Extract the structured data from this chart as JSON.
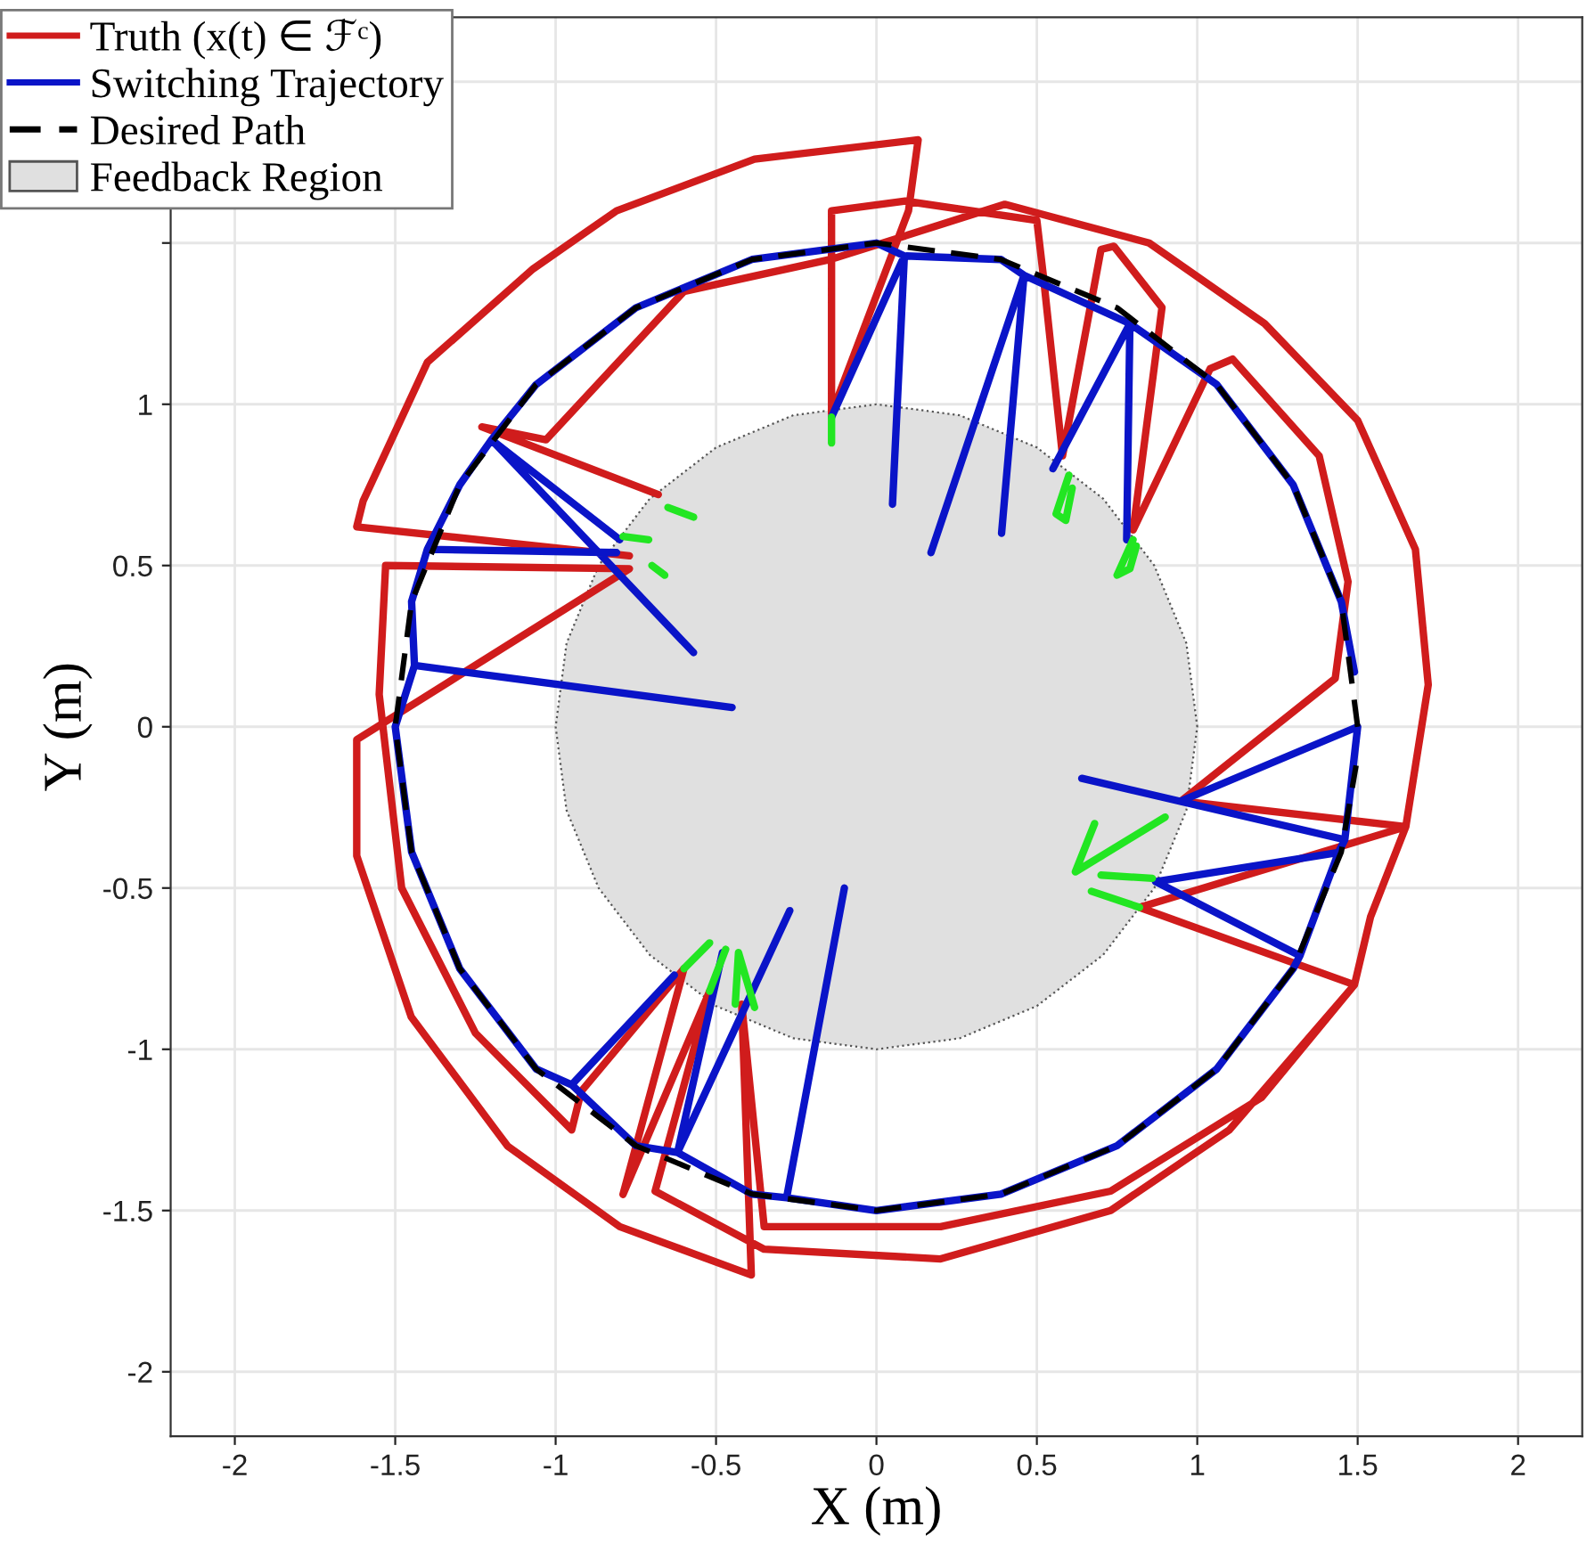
{
  "chart_data": {
    "type": "line",
    "xlabel": "X (m)",
    "ylabel": "Y (m)",
    "xlim": [
      -2.2,
      2.2
    ],
    "ylim": [
      -2.2,
      2.2
    ],
    "xticks": [
      -2,
      -1.5,
      -1,
      -0.5,
      0,
      0.5,
      1,
      1.5,
      2
    ],
    "yticks": [
      -2,
      -1.5,
      -1,
      -0.5,
      0,
      0.5,
      1,
      {
        "value": 1.5,
        "label": null
      },
      {
        "value": 2,
        "label": null
      }
    ],
    "grid": true,
    "legend": "top left",
    "series": [
      {
        "name": "Truth (x(t) ∈ ℱᶜ)",
        "color": "#d01c1c",
        "line_style": "solid",
        "x": [
          -0.77,
          -1.62,
          -1.6,
          -1.4,
          -1.07,
          -0.81,
          -0.38,
          0.13,
          0.1,
          -0.14,
          -0.14,
          0.09,
          0.5,
          0.52,
          0.58,
          0.7,
          0.74,
          0.89,
          0.8,
          1.04,
          1.11,
          1.38,
          1.47,
          1.43,
          0.95,
          1.65,
          1.54,
          1.49,
          1.2,
          0.73,
          0.2,
          -0.35,
          -0.42,
          -0.39,
          -0.8,
          -1.15,
          -1.45,
          -1.62,
          -1.62,
          -0.77,
          -1.53,
          -1.55,
          -1.48,
          -1.25,
          -0.95,
          -0.92,
          -0.6,
          -0.79,
          -0.52,
          -0.69,
          -0.35,
          0.2,
          0.73,
          1.1,
          1.49,
          0.82,
          1.65,
          1.72,
          1.68,
          1.5,
          1.21,
          0.85,
          0.4,
          -0.14,
          -0.6,
          -1.03,
          -1.23,
          -0.68
        ],
        "values": [
          0.53,
          0.62,
          0.7,
          1.13,
          1.42,
          1.6,
          1.76,
          1.82,
          1.6,
          0.97,
          1.6,
          1.63,
          1.57,
          1.4,
          0.84,
          1.48,
          1.49,
          1.3,
          0.61,
          1.11,
          1.14,
          0.84,
          0.45,
          0.15,
          -0.23,
          -0.31,
          -0.59,
          -0.8,
          -1.15,
          -1.44,
          -1.55,
          -1.55,
          -0.86,
          -1.7,
          -1.55,
          -1.3,
          -0.9,
          -0.4,
          -0.04,
          0.49,
          0.5,
          0.1,
          -0.5,
          -0.95,
          -1.25,
          -1.13,
          -0.75,
          -1.45,
          -0.82,
          -1.44,
          -1.62,
          -1.65,
          -1.5,
          -1.25,
          -0.8,
          -0.56,
          -0.31,
          0.13,
          0.55,
          0.95,
          1.25,
          1.5,
          1.62,
          1.45,
          1.35,
          0.89,
          0.93,
          0.72
        ]
      },
      {
        "name": "Switching Trajectory",
        "color": "#0a14c8",
        "line_style": "solid",
        "x": [
          1.49,
          1.449,
          1.299,
          1.061,
          0.79,
          0.55,
          0.79,
          0.78,
          0.79,
          0.46,
          0.39,
          0.46,
          0.17,
          0.46,
          0.388,
          0.087,
          0.05,
          0.087,
          -0.14,
          0.087,
          0,
          -0.388,
          -0.75,
          -1.061,
          -1.2,
          -0.8,
          -1.2,
          -0.57,
          -1.2,
          -1.299,
          -1.4,
          -0.81,
          -1.4,
          -1.449,
          -1.44,
          -0.45,
          -1.44,
          -1.5,
          -1.449,
          -1.299,
          -1.061,
          -0.95,
          -0.63,
          -0.95,
          -0.75,
          -0.62,
          -0.48,
          -0.62,
          -0.27,
          -0.62,
          -0.388,
          -0.28,
          -0.1,
          -0.28,
          0,
          0.388,
          0.75,
          1.061,
          1.299,
          1.32,
          0.87,
          1.32,
          1.44,
          0.87,
          1.44,
          1.46,
          0.64,
          1.46,
          1.5,
          0.95,
          1.5
        ],
        "values": [
          0.17,
          0.388,
          0.75,
          1.061,
          1.25,
          0.8,
          1.25,
          0.58,
          1.25,
          1.4,
          0.6,
          1.4,
          0.54,
          1.4,
          1.449,
          1.46,
          0.69,
          1.46,
          0.96,
          1.46,
          1.5,
          1.449,
          1.299,
          1.061,
          0.89,
          0.58,
          0.89,
          0.23,
          0.89,
          0.75,
          0.55,
          0.54,
          0.55,
          0.388,
          0.19,
          0.06,
          0.19,
          0,
          -0.388,
          -0.75,
          -1.061,
          -1.11,
          -0.77,
          -1.11,
          -1.299,
          -1.32,
          -0.7,
          -1.32,
          -0.57,
          -1.32,
          -1.449,
          -1.46,
          -0.5,
          -1.46,
          -1.5,
          -1.449,
          -1.299,
          -1.061,
          -0.75,
          -0.71,
          -0.48,
          -0.71,
          -0.39,
          -0.48,
          -0.39,
          -0.35,
          -0.16,
          -0.35,
          0,
          -0.23,
          0
        ]
      },
      {
        "name": "Desired Path",
        "color": "#000000",
        "line_style": "dashed",
        "x": [
          1.5,
          1.449,
          1.299,
          1.061,
          0.75,
          0.388,
          0,
          -0.388,
          -0.75,
          -1.061,
          -1.299,
          -1.449,
          -1.5,
          -1.449,
          -1.299,
          -1.061,
          -0.75,
          -0.388,
          0,
          0.388,
          0.75,
          1.061,
          1.299,
          1.449,
          1.495
        ],
        "values": [
          0,
          0.388,
          0.75,
          1.061,
          1.299,
          1.449,
          1.5,
          1.449,
          1.299,
          1.061,
          0.75,
          0.388,
          0,
          -0.388,
          -0.75,
          -1.061,
          -1.299,
          -1.449,
          -1.5,
          -1.449,
          -1.299,
          -1.061,
          -0.75,
          -0.388,
          -0.12
        ]
      },
      {
        "name": "Feedback Region",
        "type": "area",
        "color": "#e0e0e0",
        "line_style": "dotted",
        "x": [
          1,
          0.966,
          0.866,
          0.707,
          0.5,
          0.259,
          0,
          -0.259,
          -0.5,
          -0.707,
          -0.866,
          -0.966,
          -1,
          -0.966,
          -0.866,
          -0.707,
          -0.5,
          -0.259,
          0,
          0.259,
          0.5,
          0.707,
          0.866,
          0.966,
          1
        ],
        "values": [
          0,
          0.259,
          0.5,
          0.707,
          0.866,
          0.966,
          1,
          0.966,
          0.866,
          0.707,
          0.5,
          0.259,
          0,
          -0.259,
          -0.5,
          -0.707,
          -0.866,
          -0.966,
          -1,
          -0.966,
          -0.866,
          -0.707,
          -0.5,
          -0.259,
          0
        ]
      },
      {
        "color": "#22e622",
        "line_style": "solid",
        "x": [
          -0.14,
          -0.14,
          null,
          -0.65,
          -0.57,
          null,
          -0.79,
          -0.71,
          null,
          -0.7,
          -0.66,
          null,
          0.6,
          0.56,
          0.59,
          0.61,
          null,
          0.8,
          0.75,
          0.79,
          0.81,
          null,
          -0.6,
          -0.52,
          null,
          -0.52,
          -0.47,
          null,
          -0.44,
          -0.43,
          -0.38,
          null,
          0.9,
          0.62,
          0.68,
          null,
          0.86,
          0.7,
          null,
          0.82,
          0.67
        ],
        "values": [
          0.96,
          0.88,
          null,
          0.68,
          0.65,
          null,
          0.59,
          0.58,
          null,
          0.5,
          0.47,
          null,
          0.78,
          0.66,
          0.64,
          0.74,
          null,
          0.58,
          0.47,
          0.49,
          0.56,
          null,
          -0.75,
          -0.67,
          null,
          -0.82,
          -0.69,
          null,
          -0.86,
          -0.7,
          -0.87,
          null,
          -0.28,
          -0.45,
          -0.3,
          null,
          -0.47,
          -0.46,
          null,
          -0.56,
          -0.51
        ]
      }
    ]
  }
}
